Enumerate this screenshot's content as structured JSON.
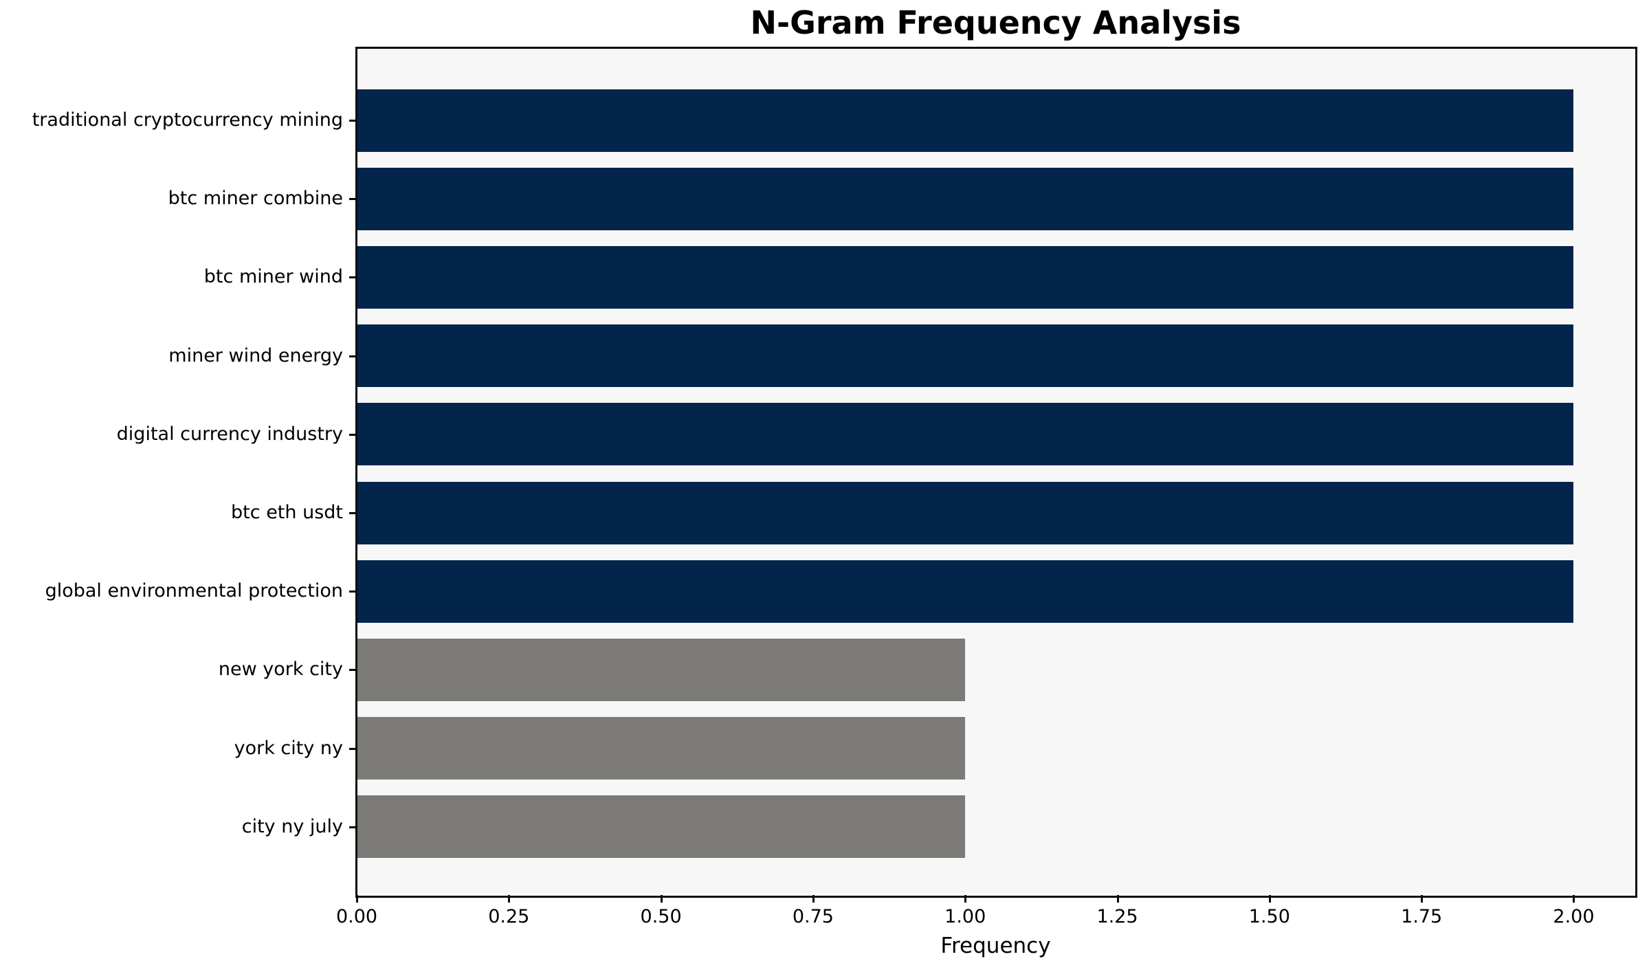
{
  "figure": {
    "background": "#ffffff",
    "plot_background": "#f7f7f7",
    "spine_color": "#0a0a0a",
    "text_color": "#000000"
  },
  "chart_data": {
    "type": "bar",
    "orientation": "horizontal",
    "title": "N-Gram Frequency Analysis",
    "xlabel": "Frequency",
    "ylabel": "",
    "categories": [
      "traditional cryptocurrency mining",
      "btc miner combine",
      "btc miner wind",
      "miner wind energy",
      "digital currency industry",
      "btc eth usdt",
      "global environmental protection",
      "new york city",
      "york city ny",
      "city ny july"
    ],
    "values": [
      2,
      2,
      2,
      2,
      2,
      2,
      2,
      1,
      1,
      1
    ],
    "bar_colors": [
      "#03254c",
      "#03254c",
      "#03254c",
      "#03254c",
      "#03254c",
      "#03254c",
      "#03254c",
      "#7b7a77",
      "#7b7a77",
      "#7b7a77"
    ],
    "x_tick_labels": [
      "0.00",
      "0.25",
      "0.50",
      "0.75",
      "1.00",
      "1.25",
      "1.50",
      "1.75",
      "2.00"
    ],
    "x_tick_values": [
      0,
      0.25,
      0.5,
      0.75,
      1.0,
      1.25,
      1.5,
      1.75,
      2.0
    ],
    "xlim": [
      0,
      2.1
    ],
    "grid": false,
    "legend": null
  }
}
